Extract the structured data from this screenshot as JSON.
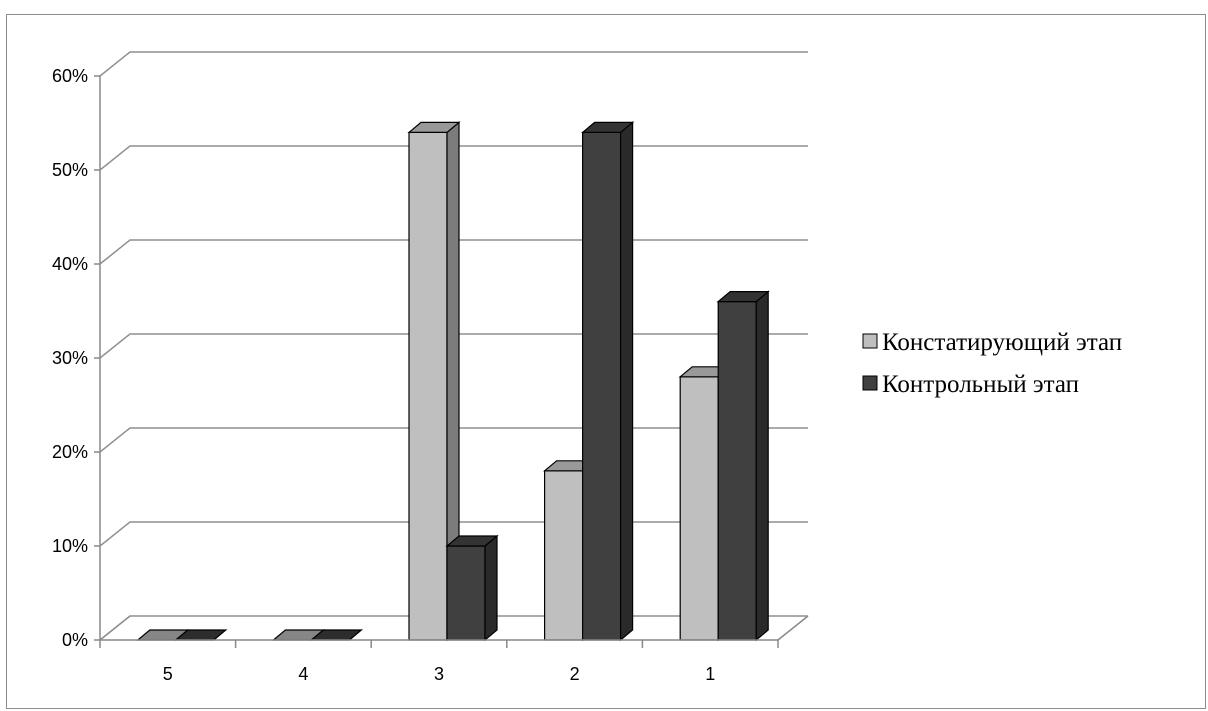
{
  "chart_data": {
    "type": "bar",
    "title": "",
    "xlabel": "",
    "ylabel": "",
    "categories": [
      "5",
      "4",
      "3",
      "2",
      "1"
    ],
    "series": [
      {
        "name": "Констатирующий этап",
        "values": [
          0,
          0,
          54,
          18,
          28
        ],
        "color": "#bfbfbf"
      },
      {
        "name": "Контрольный этап",
        "values": [
          0,
          0,
          10,
          54,
          36
        ],
        "color": "#404040"
      }
    ],
    "ylim": [
      0,
      60
    ],
    "yticks": [
      "0%",
      "10%",
      "20%",
      "30%",
      "40%",
      "50%",
      "60%"
    ],
    "grid": true,
    "legend_position": "right",
    "style": "3d-clustered-column"
  }
}
